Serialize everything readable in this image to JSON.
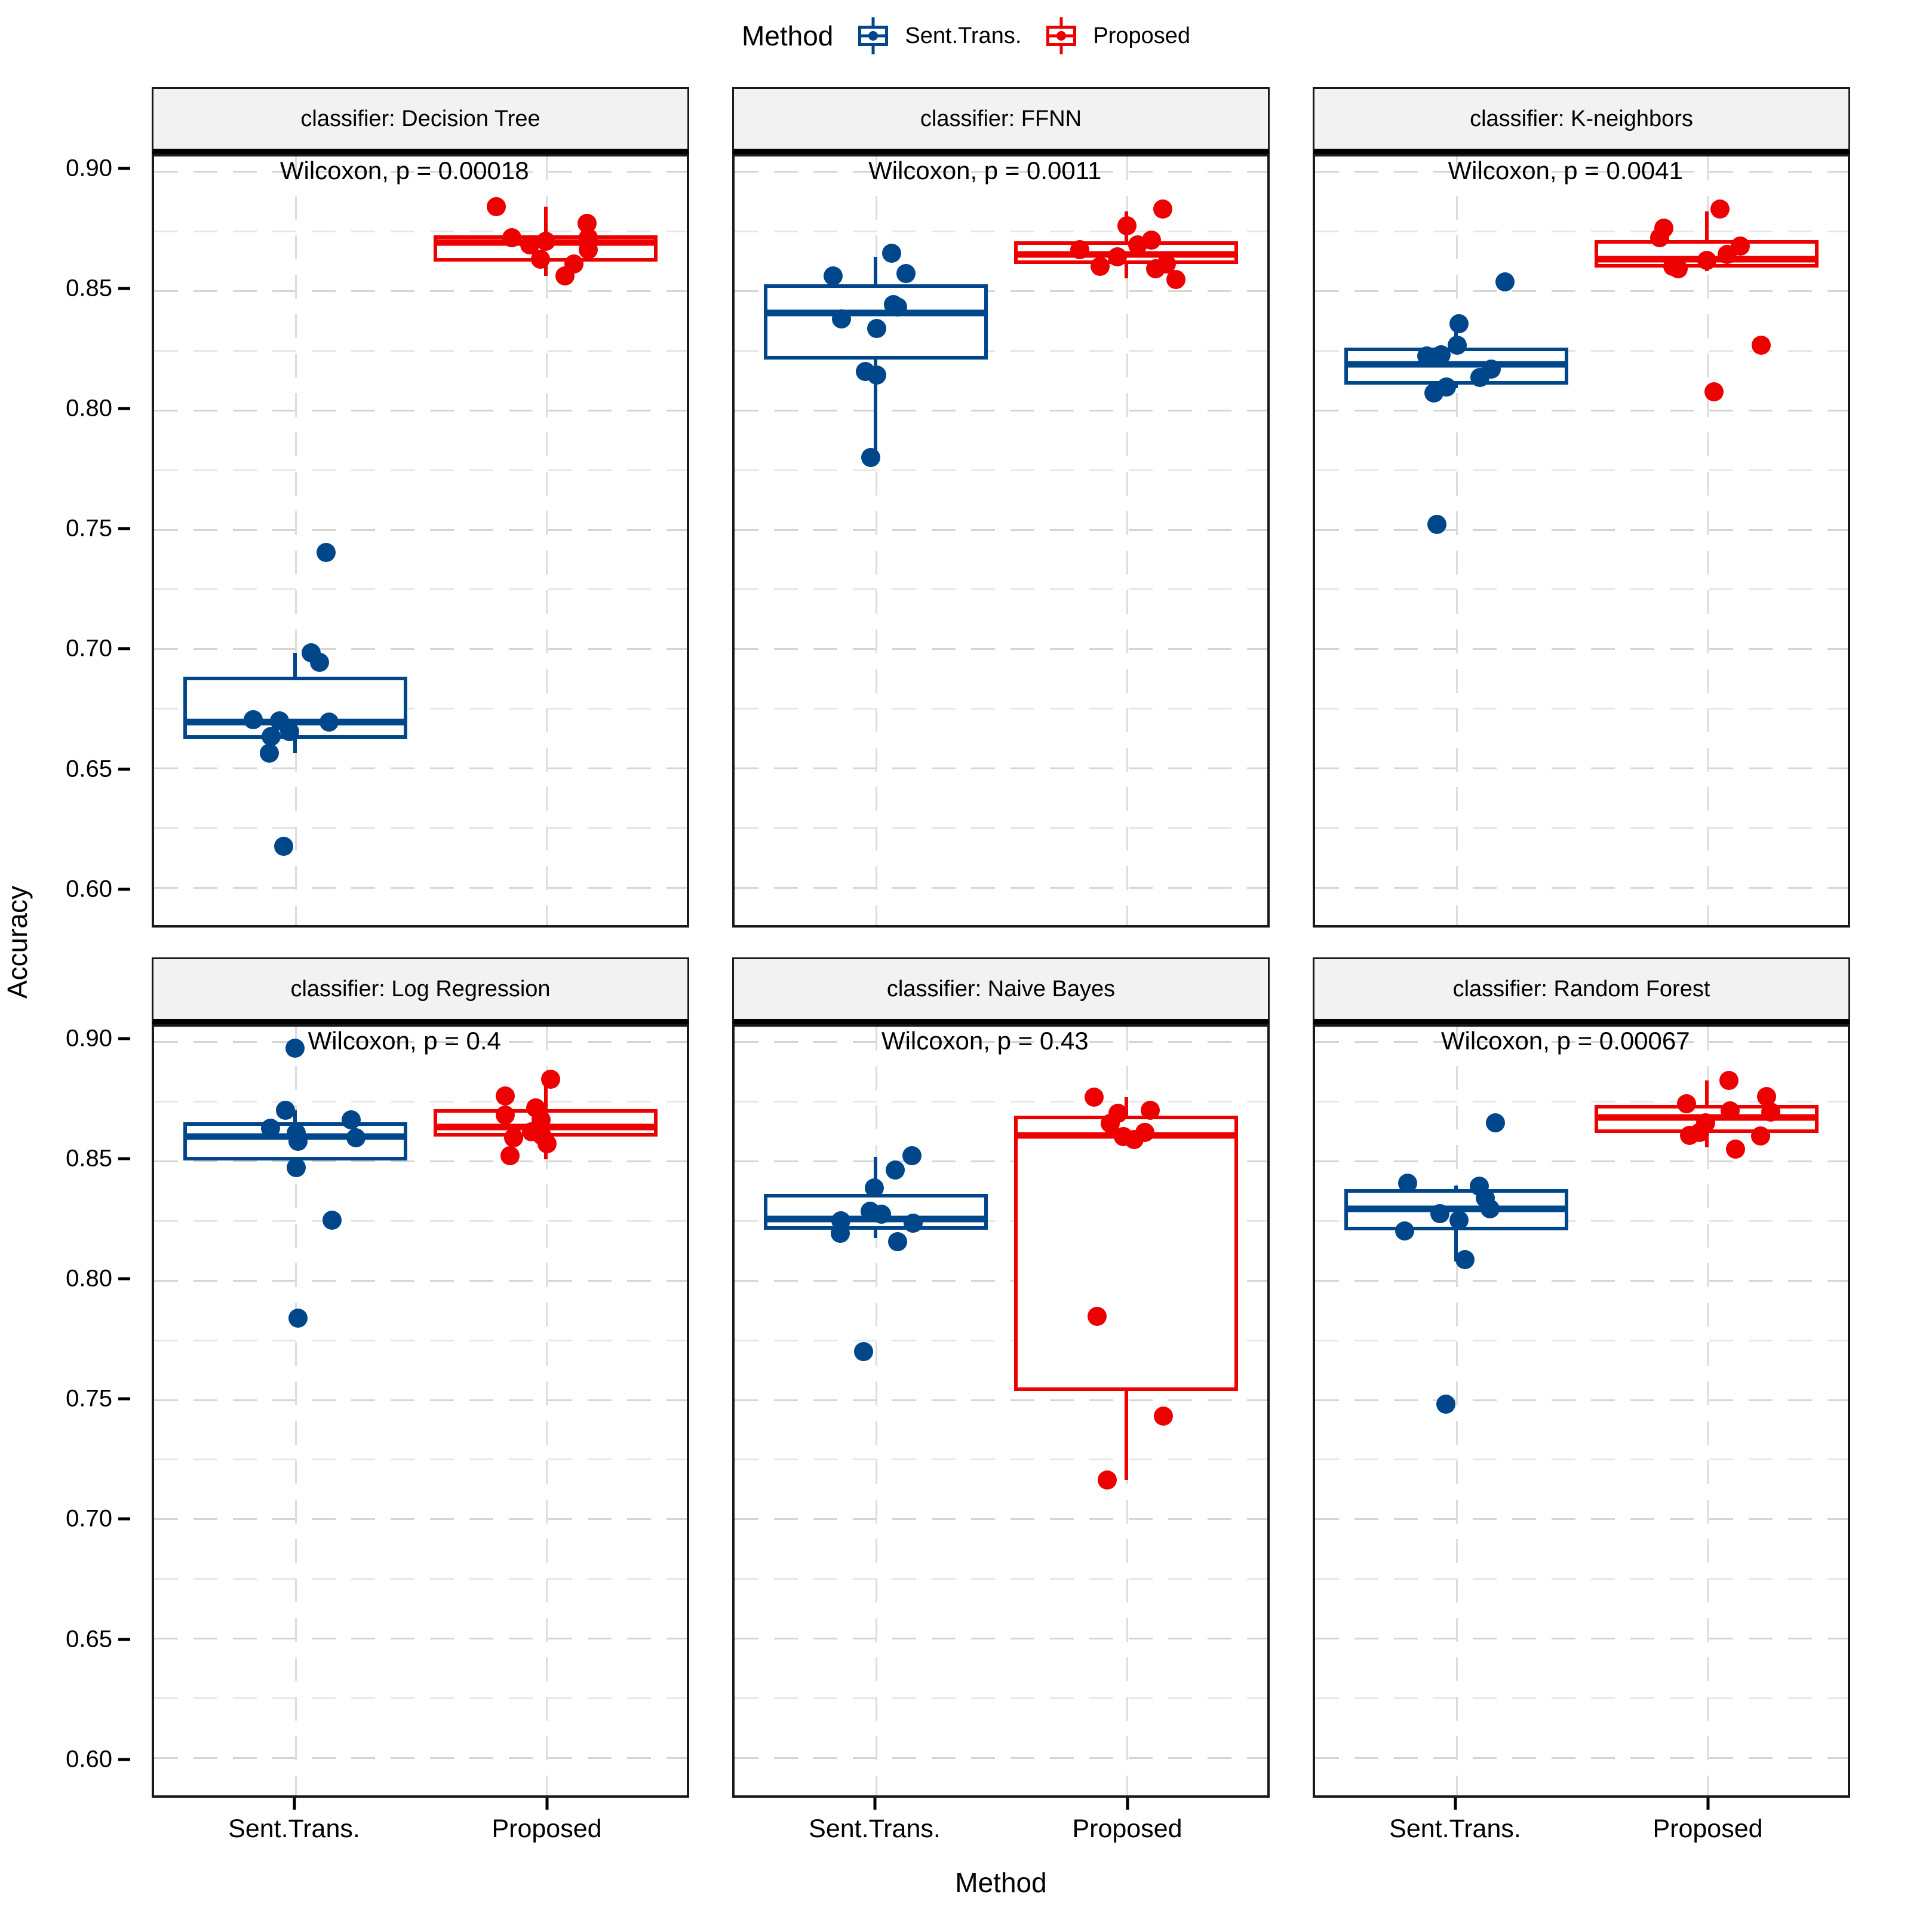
{
  "legend": {
    "title": "Method",
    "items": [
      {
        "label": "Sent.Trans.",
        "color": "#00468B"
      },
      {
        "label": "Proposed",
        "color": "#ED0000"
      }
    ]
  },
  "chart_data": {
    "type": "boxplot",
    "facet_variable": "classifier",
    "x_categories": [
      "Sent.Trans.",
      "Proposed"
    ],
    "xlabel": "Method",
    "ylabel": "Accuracy",
    "y_tick_labels": [
      "0.90",
      "0.85",
      "0.80",
      "0.75",
      "0.70",
      "0.65",
      "0.60"
    ],
    "grid": "dashed, major and minor horizontal lines every 0.025, vertical line at each group center",
    "legend_position": "top",
    "series_colors": {
      "Sent.Trans.": "#00468B",
      "Proposed": "#ED0000"
    },
    "scale": {
      "top": 0.906,
      "bottom": 0.584,
      "majors": [
        0.9,
        0.85,
        0.8,
        0.75,
        0.7,
        0.65,
        0.6
      ],
      "minors": [
        0.875,
        0.825,
        0.775,
        0.725,
        0.675,
        0.625
      ],
      "group_centers_pct": [
        26.5,
        73.5
      ],
      "box_width_pct": 42,
      "annotation_y": 0.9
    },
    "facets": [
      {
        "strip": "classifier: Decision Tree",
        "annotation": "Wilcoxon, p = 0.00018",
        "groups": [
          {
            "method": "Sent.Trans.",
            "box": {
              "q1": 0.662,
              "median": 0.669,
              "q3": 0.688,
              "whisker_low": 0.656,
              "whisker_high": 0.698
            },
            "points": [
              [
                5.8,
                0.74
              ],
              [
                3.0,
                0.698
              ],
              [
                4.5,
                0.694
              ],
              [
                -7.9,
                0.67
              ],
              [
                -3.0,
                0.6695
              ],
              [
                6.4,
                0.669
              ],
              [
                -1.1,
                0.665
              ],
              [
                -4.5,
                0.663
              ],
              [
                -4.9,
                0.656
              ],
              [
                -2.2,
                0.617
              ]
            ]
          },
          {
            "method": "Proposed",
            "box": {
              "q1": 0.862,
              "median": 0.87,
              "q3": 0.873,
              "whisker_low": 0.856,
              "whisker_high": 0.885
            },
            "points": [
              [
                -9.3,
                0.885
              ],
              [
                7.8,
                0.878
              ],
              [
                -6.3,
                0.872
              ],
              [
                8.0,
                0.872
              ],
              [
                0.0,
                0.8705
              ],
              [
                -3.0,
                0.869
              ],
              [
                8.0,
                0.867
              ],
              [
                -1.0,
                0.863
              ],
              [
                5.3,
                0.861
              ],
              [
                3.6,
                0.856
              ]
            ]
          }
        ]
      },
      {
        "strip": "classifier: FFNN",
        "annotation": "Wilcoxon, p = 0.0011",
        "groups": [
          {
            "method": "Sent.Trans.",
            "box": {
              "q1": 0.821,
              "median": 0.8405,
              "q3": 0.8525,
              "whisker_low": 0.782,
              "whisker_high": 0.864
            },
            "points": [
              [
                3.0,
                0.8655
              ],
              [
                5.7,
                0.857
              ],
              [
                -8.0,
                0.856
              ],
              [
                3.3,
                0.844
              ],
              [
                4.1,
                0.843
              ],
              [
                -6.4,
                0.838
              ],
              [
                0.2,
                0.834
              ],
              [
                -2.0,
                0.816
              ],
              [
                0.2,
                0.8145
              ],
              [
                -0.9,
                0.78
              ]
            ]
          },
          {
            "method": "Proposed",
            "box": {
              "q1": 0.861,
              "median": 0.865,
              "q3": 0.8705,
              "whisker_low": 0.855,
              "whisker_high": 0.883
            },
            "points": [
              [
                6.9,
                0.884
              ],
              [
                0.1,
                0.877
              ],
              [
                4.7,
                0.871
              ],
              [
                2.2,
                0.869
              ],
              [
                -8.7,
                0.867
              ],
              [
                -1.6,
                0.864
              ],
              [
                7.5,
                0.861
              ],
              [
                -4.9,
                0.86
              ],
              [
                5.5,
                0.859
              ],
              [
                9.3,
                0.8545
              ]
            ]
          }
        ]
      },
      {
        "strip": "classifier: K-neighbors",
        "annotation": "Wilcoxon, p = 0.0041",
        "groups": [
          {
            "method": "Sent.Trans.",
            "box": {
              "q1": 0.8105,
              "median": 0.819,
              "q3": 0.826,
              "whisker_low": 0.809,
              "whisker_high": 0.835
            },
            "points": [
              [
                9.2,
                0.8535
              ],
              [
                0.5,
                0.836
              ],
              [
                0.2,
                0.827
              ],
              [
                -2.9,
                0.823
              ],
              [
                -5.5,
                0.8225
              ],
              [
                6.6,
                0.817
              ],
              [
                4.4,
                0.8135
              ],
              [
                -1.8,
                0.8095
              ],
              [
                -4.2,
                0.807
              ],
              [
                -3.6,
                0.752
              ]
            ]
          },
          {
            "method": "Proposed",
            "box": {
              "q1": 0.8595,
              "median": 0.863,
              "q3": 0.871,
              "whisker_low": 0.858,
              "whisker_high": 0.883
            },
            "points": [
              [
                2.5,
                0.884
              ],
              [
                -8.0,
                0.876
              ],
              [
                -8.8,
                0.872
              ],
              [
                6.3,
                0.8685
              ],
              [
                3.8,
                0.865
              ],
              [
                0.0,
                0.8625
              ],
              [
                -6.4,
                0.86
              ],
              [
                -5.3,
                0.859
              ],
              [
                10.2,
                0.827
              ],
              [
                1.4,
                0.8075
              ]
            ]
          }
        ]
      },
      {
        "strip": "classifier: Log Regression",
        "annotation": "Wilcoxon, p = 0.4",
        "groups": [
          {
            "method": "Sent.Trans.",
            "box": {
              "q1": 0.85,
              "median": 0.86,
              "q3": 0.866,
              "whisker_low": 0.847,
              "whisker_high": 0.871
            },
            "points": [
              [
                0.0,
                0.897
              ],
              [
                -1.8,
                0.871
              ],
              [
                10.5,
                0.867
              ],
              [
                -4.6,
                0.8635
              ],
              [
                0.2,
                0.8615
              ],
              [
                11.4,
                0.8595
              ],
              [
                0.5,
                0.858
              ],
              [
                0.2,
                0.847
              ],
              [
                6.9,
                0.825
              ],
              [
                0.5,
                0.784
              ]
            ]
          },
          {
            "method": "Proposed",
            "box": {
              "q1": 0.86,
              "median": 0.864,
              "q3": 0.8715,
              "whisker_low": 0.8505,
              "whisker_high": 0.882
            },
            "points": [
              [
                0.9,
                0.884
              ],
              [
                -7.6,
                0.877
              ],
              [
                -1.9,
                0.872
              ],
              [
                -7.6,
                0.869
              ],
              [
                -0.9,
                0.867
              ],
              [
                -2.7,
                0.862
              ],
              [
                -0.7,
                0.8605
              ],
              [
                -6.0,
                0.8595
              ],
              [
                0.3,
                0.857
              ],
              [
                -6.7,
                0.852
              ]
            ]
          }
        ]
      },
      {
        "strip": "classifier: Naive Bayes",
        "annotation": "Wilcoxon, p = 0.43",
        "groups": [
          {
            "method": "Sent.Trans.",
            "box": {
              "q1": 0.821,
              "median": 0.8255,
              "q3": 0.836,
              "whisker_low": 0.8175,
              "whisker_high": 0.8515
            },
            "points": [
              [
                6.8,
                0.852
              ],
              [
                3.7,
                0.846
              ],
              [
                -0.3,
                0.8385
              ],
              [
                -1.1,
                0.8287
              ],
              [
                1.1,
                0.8275
              ],
              [
                -6.6,
                0.8248
              ],
              [
                7.0,
                0.8238
              ],
              [
                -6.7,
                0.8194
              ],
              [
                4.1,
                0.816
              ],
              [
                -2.3,
                0.77
              ]
            ]
          },
          {
            "method": "Proposed",
            "box": {
              "q1": 0.7534,
              "median": 0.8605,
              "q3": 0.8686,
              "whisker_low": 0.716,
              "whisker_high": 0.8765
            },
            "points": [
              [
                -6.0,
                0.8765
              ],
              [
                4.5,
                0.871
              ],
              [
                -1.5,
                0.8696
              ],
              [
                -3.0,
                0.8654
              ],
              [
                3.5,
                0.8617
              ],
              [
                -0.5,
                0.86
              ],
              [
                1.5,
                0.8588
              ],
              [
                -5.5,
                0.7846
              ],
              [
                7.0,
                0.7429
              ],
              [
                -3.5,
                0.716
              ]
            ]
          }
        ]
      },
      {
        "strip": "classifier: Random Forest",
        "annotation": "Wilcoxon, p = 0.00067",
        "groups": [
          {
            "method": "Sent.Trans.",
            "box": {
              "q1": 0.8206,
              "median": 0.8296,
              "q3": 0.838,
              "whisker_low": 0.8076,
              "whisker_high": 0.8395
            },
            "points": [
              [
                7.4,
                0.8658
              ],
              [
                -9.1,
                0.8404
              ],
              [
                4.3,
                0.8392
              ],
              [
                5.4,
                0.8343
              ],
              [
                6.3,
                0.8298
              ],
              [
                -3.1,
                0.8278
              ],
              [
                0.5,
                0.8249
              ],
              [
                -9.7,
                0.8205
              ],
              [
                1.6,
                0.8085
              ],
              [
                -2.0,
                0.748
              ]
            ]
          },
          {
            "method": "Proposed",
            "box": {
              "q1": 0.8615,
              "median": 0.8679,
              "q3": 0.8733,
              "whisker_low": 0.8555,
              "whisker_high": 0.8834
            },
            "points": [
              [
                4.2,
                0.8836
              ],
              [
                11.2,
                0.8767
              ],
              [
                -3.8,
                0.8738
              ],
              [
                4.4,
                0.8708
              ],
              [
                12.0,
                0.8701
              ],
              [
                -0.2,
                0.8657
              ],
              [
                -1.3,
                0.8617
              ],
              [
                -3.2,
                0.8605
              ],
              [
                10.1,
                0.8602
              ],
              [
                5.4,
                0.8548
              ]
            ]
          }
        ]
      }
    ]
  }
}
